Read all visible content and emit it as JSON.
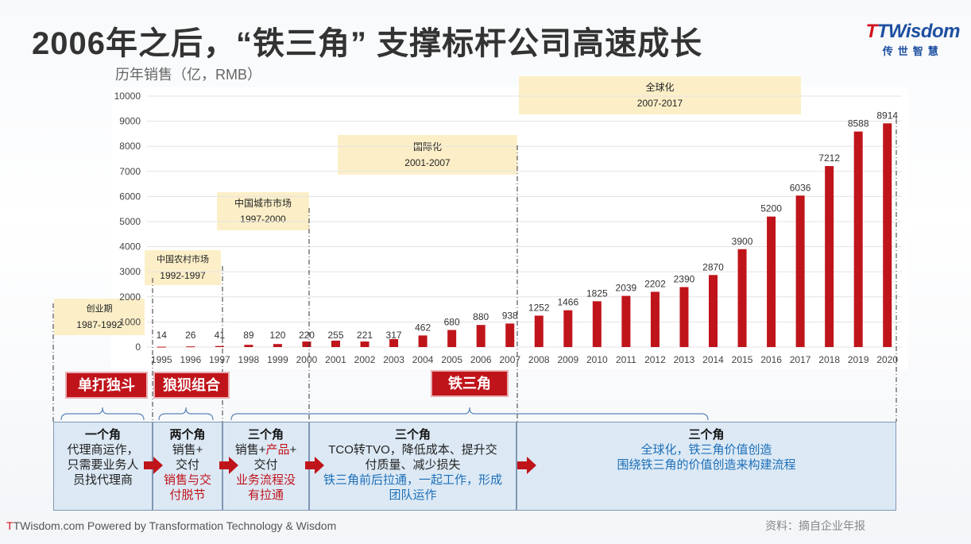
{
  "title": "2006年之后，“铁三角” 支撑标杆公司高速成长",
  "logo": {
    "brand_t": "T",
    "brand_rest": "TWisdom",
    "sub": "传世智慧"
  },
  "y_label": "历年销售（亿，RMB）",
  "chart_data": {
    "type": "bar",
    "categories": [
      "1995",
      "1996",
      "1997",
      "1998",
      "1999",
      "2000",
      "2001",
      "2002",
      "2003",
      "2004",
      "2005",
      "2006",
      "2007",
      "2008",
      "2009",
      "2010",
      "2011",
      "2012",
      "2013",
      "2014",
      "2015",
      "2016",
      "2017",
      "2018",
      "2019",
      "2020"
    ],
    "values": [
      14,
      26,
      41,
      89,
      120,
      220,
      255,
      221,
      317,
      462,
      680,
      880,
      938,
      1252,
      1466,
      1825,
      2039,
      2202,
      2390,
      2870,
      3900,
      5200,
      6036,
      7212,
      8588,
      8914
    ],
    "ylabel": "历年销售（亿，RMB）",
    "ylim": [
      0,
      10000
    ],
    "yticks": [
      0,
      1000,
      2000,
      3000,
      4000,
      5000,
      6000,
      7000,
      8000,
      9000,
      10000
    ],
    "bar_color": "#c0141b",
    "grid": true
  },
  "phases": [
    {
      "name": "创业期",
      "years": "1987-1992"
    },
    {
      "name": "中国农村市场",
      "years": "1992-1997"
    },
    {
      "name": "中国城市市场",
      "years": "1997-2000"
    },
    {
      "name": "国际化",
      "years": "2001-2007"
    },
    {
      "name": "全球化",
      "years": "2007-2017"
    }
  ],
  "tags": {
    "solo": "单打独斗",
    "pack": "狼狈组合",
    "triangle": "铁三角"
  },
  "stages": [
    {
      "head": "一个角",
      "lines": [
        "代理商运作，",
        "只需要业务人",
        "员找代理商"
      ]
    },
    {
      "head": "两个角",
      "lines": [
        "销售+",
        "交付"
      ],
      "red": [
        "销售与交",
        "付脱节"
      ]
    },
    {
      "head": "三个角",
      "line1_a": "销售+",
      "line1_red": "产品",
      "line1_b": "+",
      "lines": [
        "交付"
      ],
      "red": [
        "业务流程没",
        "有拉通"
      ]
    },
    {
      "head": "三个角",
      "lines": [
        "TCO转TVO，降低成本、提升交",
        "付质量、减少损失"
      ],
      "blue": [
        "铁三角前后拉通，一起工作，形成",
        "团队运作"
      ]
    },
    {
      "head": "三个角",
      "blue": [
        "全球化，铁三角价值创造",
        "围绕铁三角的价值创造来构建流程"
      ]
    }
  ],
  "footer": {
    "t": "T",
    "rest": "TWisdom.com Powered by Transformation Technology & Wisdom"
  },
  "source": "资料：摘自企业年报"
}
